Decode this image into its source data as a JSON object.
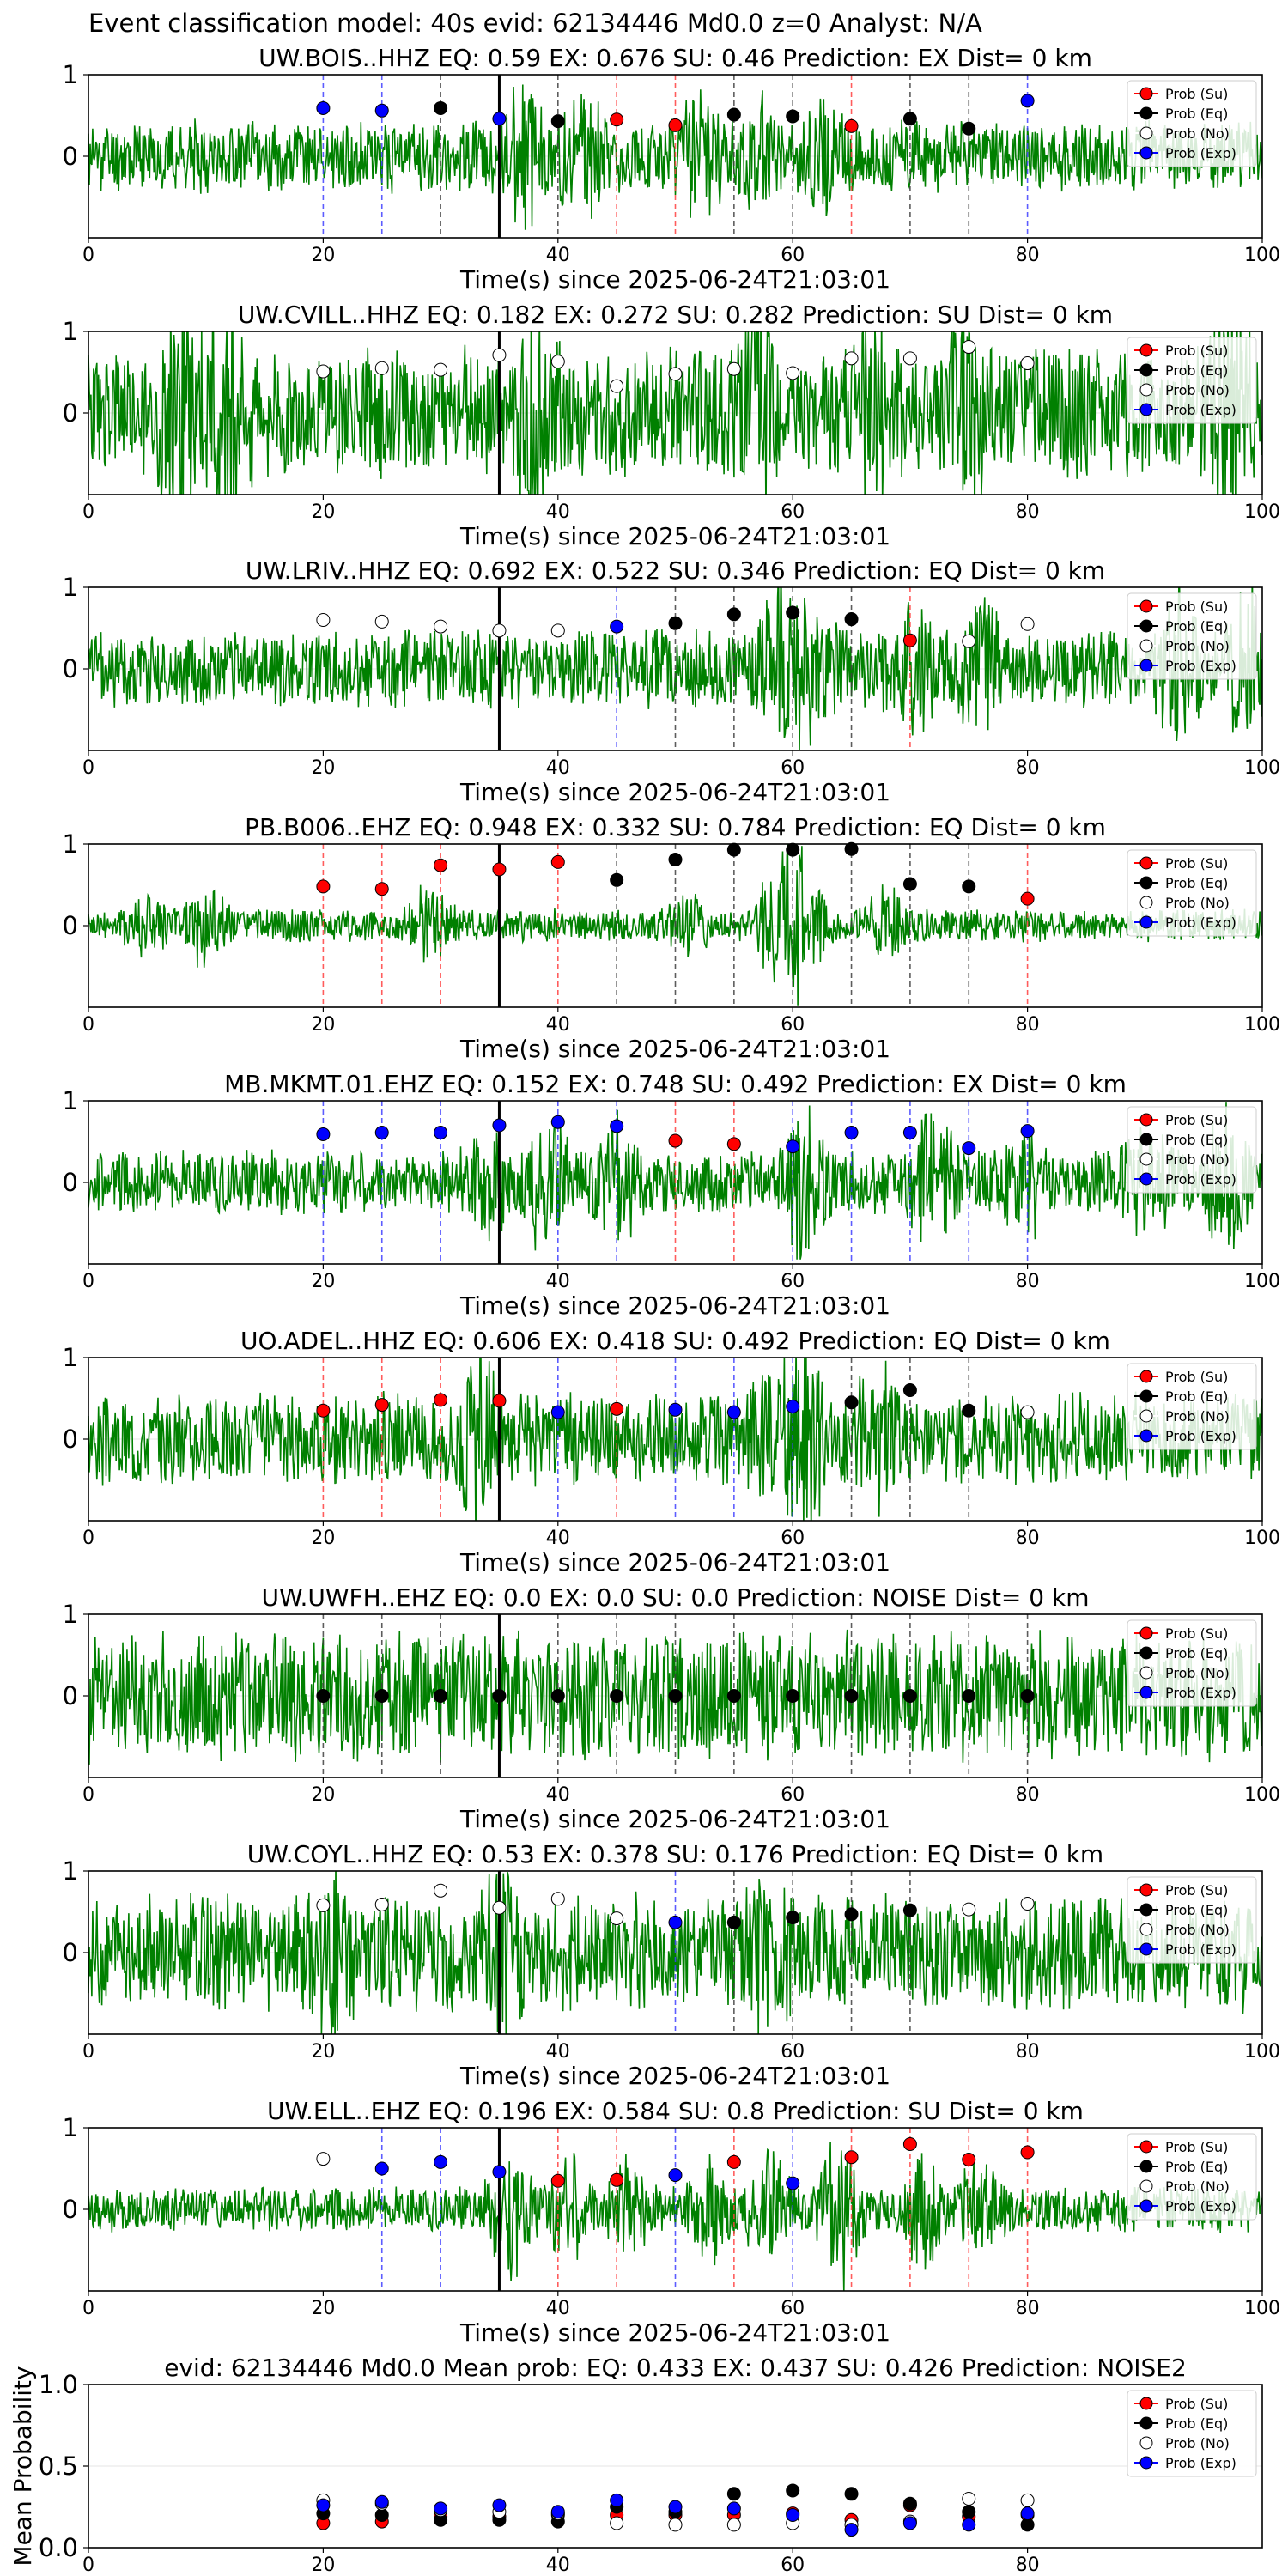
{
  "figure": {
    "suptitle": "Event classification model: 40s evid: 62134446 Md0.0 z=0 Analyst: N/A",
    "xlabel": "Time(s) since 2025-06-24T21:03:01",
    "legend": [
      "Prob (Su)",
      "Prob (Eq)",
      "Prob (No)",
      "Prob (Exp)"
    ],
    "colors": {
      "su": "#ff0000",
      "eq": "#000000",
      "no": "#ffffff",
      "exp": "#0000ff",
      "trace": "#008000"
    }
  },
  "chart_data": [
    {
      "type": "line",
      "title": "UW.BOIS..HHZ   EQ: 0.59  EX: 0.676  SU: 0.46   Prediction: EX    Dist= 0 km",
      "xlim": [
        0,
        100
      ],
      "ylim": [
        -1,
        1
      ],
      "xticks": [
        0,
        20,
        40,
        60,
        80,
        100
      ],
      "yticks": [
        1,
        0
      ],
      "amp": 0.55,
      "seed": 11,
      "bursts": [
        [
          37,
          0.9
        ],
        [
          42,
          0.6
        ],
        [
          52,
          0.7
        ],
        [
          57,
          0.5
        ],
        [
          63,
          0.5
        ]
      ],
      "x": [
        20,
        25,
        30,
        35,
        40,
        45,
        50,
        55,
        60,
        65,
        70,
        75,
        80
      ],
      "points": [
        [
          "exp",
          0.59
        ],
        [
          "exp",
          0.56
        ],
        [
          "eq",
          0.59
        ],
        [
          "exp",
          0.46
        ],
        [
          "eq",
          0.43
        ],
        [
          "su",
          0.45
        ],
        [
          "su",
          0.38
        ],
        [
          "eq",
          0.51
        ],
        [
          "eq",
          0.49
        ],
        [
          "su",
          0.37
        ],
        [
          "eq",
          0.46
        ],
        [
          "eq",
          0.34
        ],
        [
          "exp",
          0.68
        ]
      ]
    },
    {
      "type": "line",
      "title": "UW.CVILL..HHZ   EQ: 0.182  EX: 0.272  SU: 0.282   Prediction: SU    Dist= 0 km",
      "xlim": [
        0,
        100
      ],
      "ylim": [
        -1,
        1
      ],
      "xticks": [
        0,
        20,
        40,
        60,
        80,
        100
      ],
      "yticks": [
        1,
        0
      ],
      "amp": 1.0,
      "seed": 23,
      "bursts": [
        [
          8,
          1.3
        ],
        [
          12,
          1.2
        ],
        [
          38,
          1.1
        ],
        [
          57,
          1.2
        ],
        [
          67,
          1.1
        ],
        [
          75,
          1.1
        ],
        [
          97,
          1.3
        ]
      ],
      "x": [
        20,
        25,
        30,
        35,
        40,
        45,
        50,
        55,
        60,
        65,
        70,
        75,
        80
      ],
      "points": [
        [
          "no",
          0.51
        ],
        [
          "no",
          0.55
        ],
        [
          "no",
          0.53
        ],
        [
          "no",
          0.71
        ],
        [
          "no",
          0.63
        ],
        [
          "no",
          0.33
        ],
        [
          "no",
          0.48
        ],
        [
          "no",
          0.54
        ],
        [
          "no",
          0.49
        ],
        [
          "no",
          0.67
        ],
        [
          "no",
          0.67
        ],
        [
          "no",
          0.81
        ],
        [
          "no",
          0.61
        ]
      ]
    },
    {
      "type": "line",
      "title": "UW.LRIV..HHZ   EQ: 0.692  EX: 0.522  SU: 0.346   Prediction: EQ    Dist= 0 km",
      "xlim": [
        0,
        100
      ],
      "ylim": [
        -1,
        1
      ],
      "xticks": [
        0,
        20,
        40,
        60,
        80,
        100
      ],
      "yticks": [
        1,
        0
      ],
      "amp": 0.6,
      "seed": 37,
      "bursts": [
        [
          59,
          1.1
        ],
        [
          62,
          0.8
        ],
        [
          70,
          0.7
        ],
        [
          76,
          0.8
        ],
        [
          93,
          0.9
        ],
        [
          99,
          0.9
        ]
      ],
      "x": [
        20,
        25,
        30,
        35,
        40,
        45,
        50,
        55,
        60,
        65,
        70,
        75,
        80
      ],
      "points": [
        [
          "no",
          0.6
        ],
        [
          "no",
          0.58
        ],
        [
          "no",
          0.52
        ],
        [
          "no",
          0.47
        ],
        [
          "no",
          0.47
        ],
        [
          "exp",
          0.52
        ],
        [
          "eq",
          0.56
        ],
        [
          "eq",
          0.67
        ],
        [
          "eq",
          0.69
        ],
        [
          "eq",
          0.61
        ],
        [
          "su",
          0.35
        ],
        [
          "no",
          0.34
        ],
        [
          "no",
          0.55
        ]
      ]
    },
    {
      "type": "line",
      "title": "PB.B006..EHZ   EQ: 0.948  EX: 0.332  SU: 0.784   Prediction: EQ    Dist= 0 km",
      "xlim": [
        0,
        100
      ],
      "ylim": [
        -1,
        1
      ],
      "xticks": [
        0,
        20,
        40,
        60,
        80,
        100
      ],
      "yticks": [
        1,
        0
      ],
      "amp": 0.25,
      "seed": 41,
      "bursts": [
        [
          5,
          0.4
        ],
        [
          10,
          0.6
        ],
        [
          29,
          0.5
        ],
        [
          51,
          0.4
        ],
        [
          59,
          1.1
        ],
        [
          61,
          0.8
        ],
        [
          68,
          0.5
        ]
      ],
      "x": [
        20,
        25,
        30,
        35,
        40,
        45,
        50,
        55,
        60,
        65,
        70,
        75,
        80
      ],
      "points": [
        [
          "su",
          0.48
        ],
        [
          "su",
          0.45
        ],
        [
          "su",
          0.74
        ],
        [
          "su",
          0.69
        ],
        [
          "su",
          0.78
        ],
        [
          "eq",
          0.56
        ],
        [
          "eq",
          0.81
        ],
        [
          "eq",
          0.93
        ],
        [
          "eq",
          0.93
        ],
        [
          "eq",
          0.94
        ],
        [
          "eq",
          0.51
        ],
        [
          "eq",
          0.48
        ],
        [
          "su",
          0.33
        ]
      ]
    },
    {
      "type": "line",
      "title": "MB.MKMT.01.EHZ   EQ: 0.152  EX: 0.748  SU: 0.492   Prediction: EX    Dist= 0 km",
      "xlim": [
        0,
        100
      ],
      "ylim": [
        -1,
        1
      ],
      "xticks": [
        0,
        20,
        40,
        60,
        80,
        100
      ],
      "yticks": [
        1,
        0
      ],
      "amp": 0.5,
      "seed": 53,
      "bursts": [
        [
          34,
          0.5
        ],
        [
          39,
          0.8
        ],
        [
          45,
          0.7
        ],
        [
          61,
          1.0
        ],
        [
          72,
          0.8
        ],
        [
          80,
          0.5
        ],
        [
          90,
          0.6
        ],
        [
          97,
          0.8
        ]
      ],
      "x": [
        20,
        25,
        30,
        35,
        40,
        45,
        50,
        55,
        60,
        65,
        70,
        75,
        80
      ],
      "points": [
        [
          "exp",
          0.59
        ],
        [
          "exp",
          0.61
        ],
        [
          "exp",
          0.61
        ],
        [
          "exp",
          0.7
        ],
        [
          "exp",
          0.74
        ],
        [
          "exp",
          0.69
        ],
        [
          "su",
          0.51
        ],
        [
          "su",
          0.47
        ],
        [
          "exp",
          0.44
        ],
        [
          "exp",
          0.61
        ],
        [
          "exp",
          0.61
        ],
        [
          "exp",
          0.42
        ],
        [
          "exp",
          0.63
        ]
      ]
    },
    {
      "type": "line",
      "title": "UO.ADEL..HHZ   EQ: 0.606  EX: 0.418  SU: 0.492   Prediction: EQ    Dist= 0 km",
      "xlim": [
        0,
        100
      ],
      "ylim": [
        -1,
        1
      ],
      "xticks": [
        0,
        20,
        40,
        60,
        80,
        100
      ],
      "yticks": [
        1,
        0
      ],
      "amp": 0.7,
      "seed": 67,
      "bursts": [
        [
          33,
          0.9
        ],
        [
          58,
          0.9
        ],
        [
          61,
          1.1
        ],
        [
          67,
          0.8
        ]
      ],
      "x": [
        20,
        25,
        30,
        35,
        40,
        45,
        50,
        55,
        60,
        65,
        70,
        75,
        80
      ],
      "points": [
        [
          "su",
          0.35
        ],
        [
          "su",
          0.42
        ],
        [
          "su",
          0.48
        ],
        [
          "su",
          0.47
        ],
        [
          "exp",
          0.33
        ],
        [
          "su",
          0.37
        ],
        [
          "exp",
          0.36
        ],
        [
          "exp",
          0.33
        ],
        [
          "exp",
          0.4
        ],
        [
          "eq",
          0.45
        ],
        [
          "eq",
          0.6
        ],
        [
          "eq",
          0.35
        ],
        [
          "no",
          0.33
        ]
      ]
    },
    {
      "type": "line",
      "title": "UW.UWFH..EHZ   EQ: 0.0  EX: 0.0  SU: 0.0   Prediction: NOISE    Dist= 0 km",
      "xlim": [
        0,
        100
      ],
      "ylim": [
        -1,
        1
      ],
      "xticks": [
        0,
        20,
        40,
        60,
        80,
        100
      ],
      "yticks": [
        1,
        0
      ],
      "amp": 1.0,
      "seed": 71,
      "bursts": [],
      "x": [
        20,
        25,
        30,
        35,
        40,
        45,
        50,
        55,
        60,
        65,
        70,
        75,
        80
      ],
      "points": [
        [
          "eq",
          0
        ],
        [
          "eq",
          0
        ],
        [
          "eq",
          0
        ],
        [
          "eq",
          0
        ],
        [
          "eq",
          0
        ],
        [
          "eq",
          0
        ],
        [
          "eq",
          0
        ],
        [
          "eq",
          0
        ],
        [
          "eq",
          0
        ],
        [
          "eq",
          0
        ],
        [
          "eq",
          0
        ],
        [
          "eq",
          0
        ],
        [
          "eq",
          0
        ]
      ]
    },
    {
      "type": "line",
      "title": "UW.COYL..HHZ   EQ: 0.53  EX: 0.378  SU: 0.176   Prediction: EQ    Dist= 0 km",
      "xlim": [
        0,
        100
      ],
      "ylim": [
        -1,
        1
      ],
      "xticks": [
        0,
        20,
        40,
        60,
        80,
        100
      ],
      "yticks": [
        1,
        0
      ],
      "amp": 0.9,
      "seed": 83,
      "bursts": [
        [
          21,
          0.8
        ],
        [
          35,
          0.7
        ],
        [
          58,
          0.7
        ]
      ],
      "x": [
        20,
        25,
        30,
        35,
        40,
        45,
        50,
        55,
        60,
        65,
        70,
        75,
        80
      ],
      "points": [
        [
          "no",
          0.58
        ],
        [
          "no",
          0.59
        ],
        [
          "no",
          0.76
        ],
        [
          "no",
          0.55
        ],
        [
          "no",
          0.66
        ],
        [
          "no",
          0.42
        ],
        [
          "exp",
          0.37
        ],
        [
          "eq",
          0.37
        ],
        [
          "eq",
          0.43
        ],
        [
          "eq",
          0.47
        ],
        [
          "eq",
          0.52
        ],
        [
          "no",
          0.53
        ],
        [
          "no",
          0.6
        ]
      ]
    },
    {
      "type": "line",
      "title": "UW.ELL..EHZ   EQ: 0.196  EX: 0.584  SU: 0.8   Prediction: SU    Dist= 0 km",
      "xlim": [
        0,
        100
      ],
      "ylim": [
        -1,
        1
      ],
      "xticks": [
        0,
        20,
        40,
        60,
        80,
        100
      ],
      "yticks": [
        1,
        0
      ],
      "amp": 0.35,
      "seed": 97,
      "bursts": [
        [
          36,
          0.9
        ],
        [
          41,
          0.7
        ],
        [
          46,
          0.8
        ],
        [
          53,
          0.6
        ],
        [
          58,
          0.7
        ],
        [
          64,
          1.1
        ],
        [
          71,
          0.8
        ],
        [
          76,
          0.7
        ]
      ],
      "x": [
        20,
        25,
        30,
        35,
        40,
        45,
        50,
        55,
        60,
        65,
        70,
        75,
        80
      ],
      "points": [
        [
          "no",
          0.62
        ],
        [
          "exp",
          0.5
        ],
        [
          "exp",
          0.58
        ],
        [
          "exp",
          0.46
        ],
        [
          "su",
          0.35
        ],
        [
          "su",
          0.36
        ],
        [
          "exp",
          0.42
        ],
        [
          "su",
          0.58
        ],
        [
          "exp",
          0.32
        ],
        [
          "su",
          0.64
        ],
        [
          "su",
          0.8
        ],
        [
          "su",
          0.61
        ],
        [
          "su",
          0.7
        ]
      ]
    },
    {
      "type": "scatter",
      "title": "evid: 62134446  Md0.0   Mean prob:    EQ: 0.433  EX: 0.437  SU: 0.426   Prediction: NOISE2",
      "ylabel": "Mean Probability",
      "xlim": [
        0,
        100
      ],
      "ylim": [
        0,
        1
      ],
      "xticks": [
        0,
        20,
        40,
        60,
        80
      ],
      "yticks": [
        1.0,
        0.5,
        0.0
      ],
      "x": [
        20,
        25,
        30,
        35,
        40,
        45,
        50,
        55,
        60,
        65,
        70,
        75,
        80
      ],
      "series": [
        {
          "name": "Prob (Su)",
          "key": "su",
          "values": [
            0.15,
            0.16,
            0.19,
            0.19,
            0.2,
            0.2,
            0.2,
            0.2,
            0.21,
            0.17,
            0.26,
            0.19,
            0.2
          ]
        },
        {
          "name": "Prob (Eq)",
          "key": "eq",
          "values": [
            0.21,
            0.2,
            0.17,
            0.17,
            0.16,
            0.25,
            0.22,
            0.33,
            0.35,
            0.33,
            0.27,
            0.22,
            0.14
          ]
        },
        {
          "name": "Prob (No)",
          "key": "no",
          "values": [
            0.29,
            0.27,
            0.23,
            0.22,
            0.21,
            0.15,
            0.14,
            0.14,
            0.15,
            0.14,
            0.16,
            0.3,
            0.29
          ]
        },
        {
          "name": "Prob (Exp)",
          "key": "exp",
          "values": [
            0.26,
            0.28,
            0.24,
            0.26,
            0.22,
            0.29,
            0.25,
            0.24,
            0.2,
            0.11,
            0.15,
            0.14,
            0.21
          ]
        }
      ]
    }
  ]
}
